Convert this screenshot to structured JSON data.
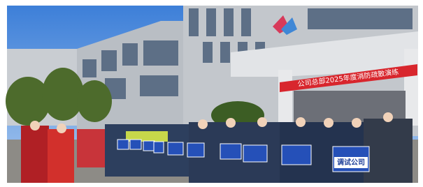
{
  "photo": {
    "banner": "公司总部2025年度消防疏散演练",
    "front_sign": "调试公司"
  }
}
